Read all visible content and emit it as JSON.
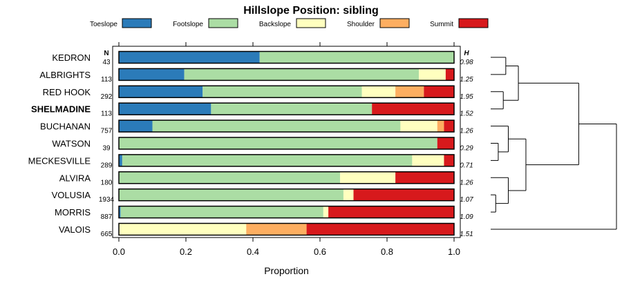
{
  "chart_data": {
    "type": "bar",
    "subtype": "stacked-horizontal-proportion",
    "title": "Hillslope Position: sibling",
    "xlabel": "Proportion",
    "ylabel": "",
    "xlim": [
      0,
      1
    ],
    "xticks": [
      0,
      0.2,
      0.4,
      0.6,
      0.8,
      1
    ],
    "xtick_labels": [
      "0.0",
      "0.2",
      "0.4",
      "0.6",
      "0.8",
      "1.0"
    ],
    "n_header": "N",
    "h_header": "H",
    "highlight_label": "SHELMADINE",
    "categories": [
      "KEDRON",
      "ALBRIGHTS",
      "RED HOOK",
      "SHELMADINE",
      "BUCHANAN",
      "WATSON",
      "MECKESVILLE",
      "ALVIRA",
      "VOLUSIA",
      "MORRIS",
      "VALOIS"
    ],
    "n": [
      "43",
      "113",
      "292",
      "113",
      "757",
      "39",
      "289",
      "180",
      "1934",
      "887",
      "665"
    ],
    "h": [
      "0.98",
      "1.25",
      "1.95",
      "1.52",
      "1.26",
      "0.29",
      "0.71",
      "1.26",
      "1.07",
      "1.09",
      "1.51"
    ],
    "series": [
      {
        "name": "Toeslope",
        "color": "#2b7bb9",
        "values": [
          0.42,
          0.195,
          0.25,
          0.275,
          0.1,
          0.0,
          0.01,
          0.0,
          0.0,
          0.005,
          0.0
        ]
      },
      {
        "name": "Footslope",
        "color": "#abdda4",
        "values": [
          0.58,
          0.7,
          0.475,
          0.48,
          0.74,
          0.95,
          0.865,
          0.66,
          0.67,
          0.605,
          0.0
        ]
      },
      {
        "name": "Backslope",
        "color": "#ffffbf",
        "values": [
          0.0,
          0.08,
          0.1,
          0.0,
          0.11,
          0.0,
          0.095,
          0.165,
          0.03,
          0.015,
          0.38
        ]
      },
      {
        "name": "Shoulder",
        "color": "#fdae61",
        "values": [
          0.0,
          0.0,
          0.085,
          0.0,
          0.02,
          0.0,
          0.0,
          0.0,
          0.0,
          0.0,
          0.18
        ]
      },
      {
        "name": "Summit",
        "color": "#d7191c",
        "values": [
          0.0,
          0.025,
          0.09,
          0.245,
          0.03,
          0.05,
          0.03,
          0.175,
          0.3,
          0.375,
          0.44
        ]
      }
    ],
    "dendrogram": {
      "leaf_order": [
        "KEDRON",
        "ALBRIGHTS",
        "RED HOOK",
        "SHELMADINE",
        "BUCHANAN",
        "WATSON",
        "MECKESVILLE",
        "ALVIRA",
        "VOLUSIA",
        "MORRIS",
        "VALOIS"
      ],
      "merges": [
        {
          "left": "L0",
          "right": "L1",
          "height": 0.12
        },
        {
          "left": "L2",
          "right": "L3",
          "height": 0.1
        },
        {
          "left": "M0",
          "right": "M1",
          "height": 0.22
        },
        {
          "left": "L5",
          "right": "L6",
          "height": 0.06
        },
        {
          "left": "L4",
          "right": "M3",
          "height": 0.14
        },
        {
          "left": "L9",
          "right": "L8",
          "height": 0.04
        },
        {
          "left": "M5",
          "right": "L7",
          "height": 0.14
        },
        {
          "left": "M4",
          "right": "M6",
          "height": 0.28
        },
        {
          "left": "M2",
          "right": "M7",
          "height": 0.7
        },
        {
          "left": "M8",
          "right": "L10",
          "height": 1.0
        }
      ]
    }
  }
}
